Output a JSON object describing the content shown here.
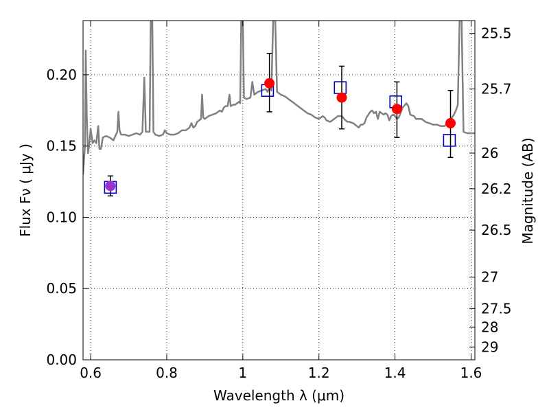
{
  "chart_data": {
    "type": "scatter",
    "xlabel": "Wavelength  λ (μm)",
    "ylabel": "Flux  Fν  ( μJy )",
    "ylabel_right": "Magnitude (AB)",
    "xlim": [
      0.58,
      1.61
    ],
    "ylim": [
      0.0,
      0.238
    ],
    "grid": true,
    "x_ticks": [
      0.6,
      0.8,
      1.0,
      1.2,
      1.4,
      1.6
    ],
    "x_tick_labels": [
      "0.6",
      "0.8",
      "1",
      "1.2",
      "1.4",
      "1.6"
    ],
    "y_ticks": [
      0.0,
      0.05,
      0.1,
      0.15,
      0.2
    ],
    "y_tick_labels": [
      "0.00",
      "0.05",
      "0.10",
      "0.15",
      "0.20"
    ],
    "right_ticks": [
      {
        "label": "25.5",
        "flux": 0.229
      },
      {
        "label": "25.7",
        "flux": 0.19
      },
      {
        "label": "26",
        "flux": 0.145
      },
      {
        "label": "26.2",
        "flux": 0.12
      },
      {
        "label": "26.5",
        "flux": 0.091
      },
      {
        "label": "27",
        "flux": 0.058
      },
      {
        "label": "27.5",
        "flux": 0.036
      },
      {
        "label": "28",
        "flux": 0.023
      },
      {
        "label": "29",
        "flux": 0.009
      }
    ],
    "series": [
      {
        "kind": "line",
        "color": "#808080",
        "points": [
          [
            0.58,
            0.13
          ],
          [
            0.585,
            0.15
          ],
          [
            0.587,
            0.217
          ],
          [
            0.59,
            0.17
          ],
          [
            0.593,
            0.145
          ],
          [
            0.596,
            0.15
          ],
          [
            0.6,
            0.162
          ],
          [
            0.605,
            0.152
          ],
          [
            0.61,
            0.154
          ],
          [
            0.615,
            0.152
          ],
          [
            0.618,
            0.16
          ],
          [
            0.62,
            0.164
          ],
          [
            0.623,
            0.148
          ],
          [
            0.627,
            0.148
          ],
          [
            0.632,
            0.156
          ],
          [
            0.64,
            0.157
          ],
          [
            0.65,
            0.156
          ],
          [
            0.66,
            0.154
          ],
          [
            0.665,
            0.157
          ],
          [
            0.67,
            0.16
          ],
          [
            0.673,
            0.174
          ],
          [
            0.676,
            0.161
          ],
          [
            0.68,
            0.158
          ],
          [
            0.69,
            0.158
          ],
          [
            0.7,
            0.157
          ],
          [
            0.71,
            0.158
          ],
          [
            0.72,
            0.159
          ],
          [
            0.73,
            0.158
          ],
          [
            0.736,
            0.16
          ],
          [
            0.741,
            0.198
          ],
          [
            0.745,
            0.16
          ],
          [
            0.75,
            0.16
          ],
          [
            0.755,
            0.16
          ],
          [
            0.758,
            0.24
          ],
          [
            0.762,
            0.24
          ],
          [
            0.765,
            0.16
          ],
          [
            0.77,
            0.158
          ],
          [
            0.78,
            0.157
          ],
          [
            0.79,
            0.158
          ],
          [
            0.795,
            0.161
          ],
          [
            0.8,
            0.159
          ],
          [
            0.81,
            0.158
          ],
          [
            0.82,
            0.158
          ],
          [
            0.83,
            0.159
          ],
          [
            0.84,
            0.161
          ],
          [
            0.85,
            0.161
          ],
          [
            0.86,
            0.163
          ],
          [
            0.865,
            0.166
          ],
          [
            0.87,
            0.163
          ],
          [
            0.875,
            0.164
          ],
          [
            0.88,
            0.167
          ],
          [
            0.885,
            0.168
          ],
          [
            0.89,
            0.169
          ],
          [
            0.893,
            0.186
          ],
          [
            0.896,
            0.17
          ],
          [
            0.9,
            0.169
          ],
          [
            0.91,
            0.171
          ],
          [
            0.92,
            0.172
          ],
          [
            0.93,
            0.173
          ],
          [
            0.94,
            0.175
          ],
          [
            0.945,
            0.174
          ],
          [
            0.95,
            0.177
          ],
          [
            0.955,
            0.178
          ],
          [
            0.96,
            0.178
          ],
          [
            0.965,
            0.186
          ],
          [
            0.968,
            0.178
          ],
          [
            0.975,
            0.179
          ],
          [
            0.98,
            0.179
          ],
          [
            0.99,
            0.181
          ],
          [
            0.993,
            0.18
          ],
          [
            0.996,
            0.24
          ],
          [
            1.0,
            0.24
          ],
          [
            1.003,
            0.184
          ],
          [
            1.01,
            0.183
          ],
          [
            1.02,
            0.184
          ],
          [
            1.025,
            0.195
          ],
          [
            1.03,
            0.186
          ],
          [
            1.04,
            0.188
          ],
          [
            1.05,
            0.189
          ],
          [
            1.06,
            0.19
          ],
          [
            1.065,
            0.188
          ],
          [
            1.07,
            0.191
          ],
          [
            1.075,
            0.189
          ],
          [
            1.08,
            0.24
          ],
          [
            1.085,
            0.24
          ],
          [
            1.09,
            0.188
          ],
          [
            1.1,
            0.186
          ],
          [
            1.11,
            0.185
          ],
          [
            1.12,
            0.183
          ],
          [
            1.13,
            0.181
          ],
          [
            1.14,
            0.179
          ],
          [
            1.15,
            0.177
          ],
          [
            1.16,
            0.175
          ],
          [
            1.17,
            0.173
          ],
          [
            1.18,
            0.172
          ],
          [
            1.19,
            0.17
          ],
          [
            1.2,
            0.169
          ],
          [
            1.21,
            0.171
          ],
          [
            1.215,
            0.17
          ],
          [
            1.22,
            0.168
          ],
          [
            1.23,
            0.167
          ],
          [
            1.24,
            0.169
          ],
          [
            1.25,
            0.171
          ],
          [
            1.26,
            0.171
          ],
          [
            1.27,
            0.168
          ],
          [
            1.275,
            0.167
          ],
          [
            1.28,
            0.167
          ],
          [
            1.29,
            0.166
          ],
          [
            1.3,
            0.164
          ],
          [
            1.305,
            0.163
          ],
          [
            1.31,
            0.165
          ],
          [
            1.315,
            0.165
          ],
          [
            1.32,
            0.166
          ],
          [
            1.325,
            0.17
          ],
          [
            1.33,
            0.172
          ],
          [
            1.335,
            0.174
          ],
          [
            1.34,
            0.175
          ],
          [
            1.345,
            0.173
          ],
          [
            1.35,
            0.174
          ],
          [
            1.355,
            0.169
          ],
          [
            1.36,
            0.174
          ],
          [
            1.37,
            0.172
          ],
          [
            1.375,
            0.173
          ],
          [
            1.38,
            0.172
          ],
          [
            1.385,
            0.168
          ],
          [
            1.39,
            0.171
          ],
          [
            1.395,
            0.172
          ],
          [
            1.4,
            0.171
          ],
          [
            1.405,
            0.169
          ],
          [
            1.41,
            0.17
          ],
          [
            1.42,
            0.177
          ],
          [
            1.43,
            0.18
          ],
          [
            1.435,
            0.178
          ],
          [
            1.44,
            0.172
          ],
          [
            1.45,
            0.171
          ],
          [
            1.455,
            0.169
          ],
          [
            1.46,
            0.169
          ],
          [
            1.47,
            0.169
          ],
          [
            1.48,
            0.167
          ],
          [
            1.49,
            0.166
          ],
          [
            1.5,
            0.165
          ],
          [
            1.51,
            0.165
          ],
          [
            1.52,
            0.164
          ],
          [
            1.53,
            0.164
          ],
          [
            1.535,
            0.165
          ],
          [
            1.54,
            0.166
          ],
          [
            1.55,
            0.17
          ],
          [
            1.555,
            0.172
          ],
          [
            1.56,
            0.175
          ],
          [
            1.565,
            0.179
          ],
          [
            1.57,
            0.24
          ],
          [
            1.575,
            0.24
          ],
          [
            1.58,
            0.16
          ],
          [
            1.59,
            0.159
          ],
          [
            1.6,
            0.159
          ],
          [
            1.61,
            0.159
          ]
        ]
      },
      {
        "kind": "errorbar",
        "color": "#000000",
        "points": [
          {
            "x": 0.652,
            "y": 0.122,
            "ylo": 0.115,
            "yhi": 0.129
          },
          {
            "x": 1.07,
            "y": 0.194,
            "ylo": 0.174,
            "yhi": 0.215
          },
          {
            "x": 1.26,
            "y": 0.184,
            "ylo": 0.162,
            "yhi": 0.206
          },
          {
            "x": 1.405,
            "y": 0.176,
            "ylo": 0.156,
            "yhi": 0.195
          },
          {
            "x": 1.546,
            "y": 0.166,
            "ylo": 0.142,
            "yhi": 0.189
          }
        ]
      },
      {
        "kind": "open-squares",
        "color": "#0000cc",
        "points": [
          [
            0.652,
            0.121
          ],
          [
            1.065,
            0.189
          ],
          [
            1.256,
            0.191
          ],
          [
            1.402,
            0.181
          ],
          [
            1.543,
            0.154
          ]
        ]
      },
      {
        "kind": "filled-circles",
        "color": "#ff0000",
        "overlap_color": "#9933cc",
        "points": [
          [
            0.652,
            0.122
          ],
          [
            1.07,
            0.194
          ],
          [
            1.26,
            0.184
          ],
          [
            1.405,
            0.176
          ],
          [
            1.546,
            0.166
          ]
        ]
      }
    ]
  }
}
